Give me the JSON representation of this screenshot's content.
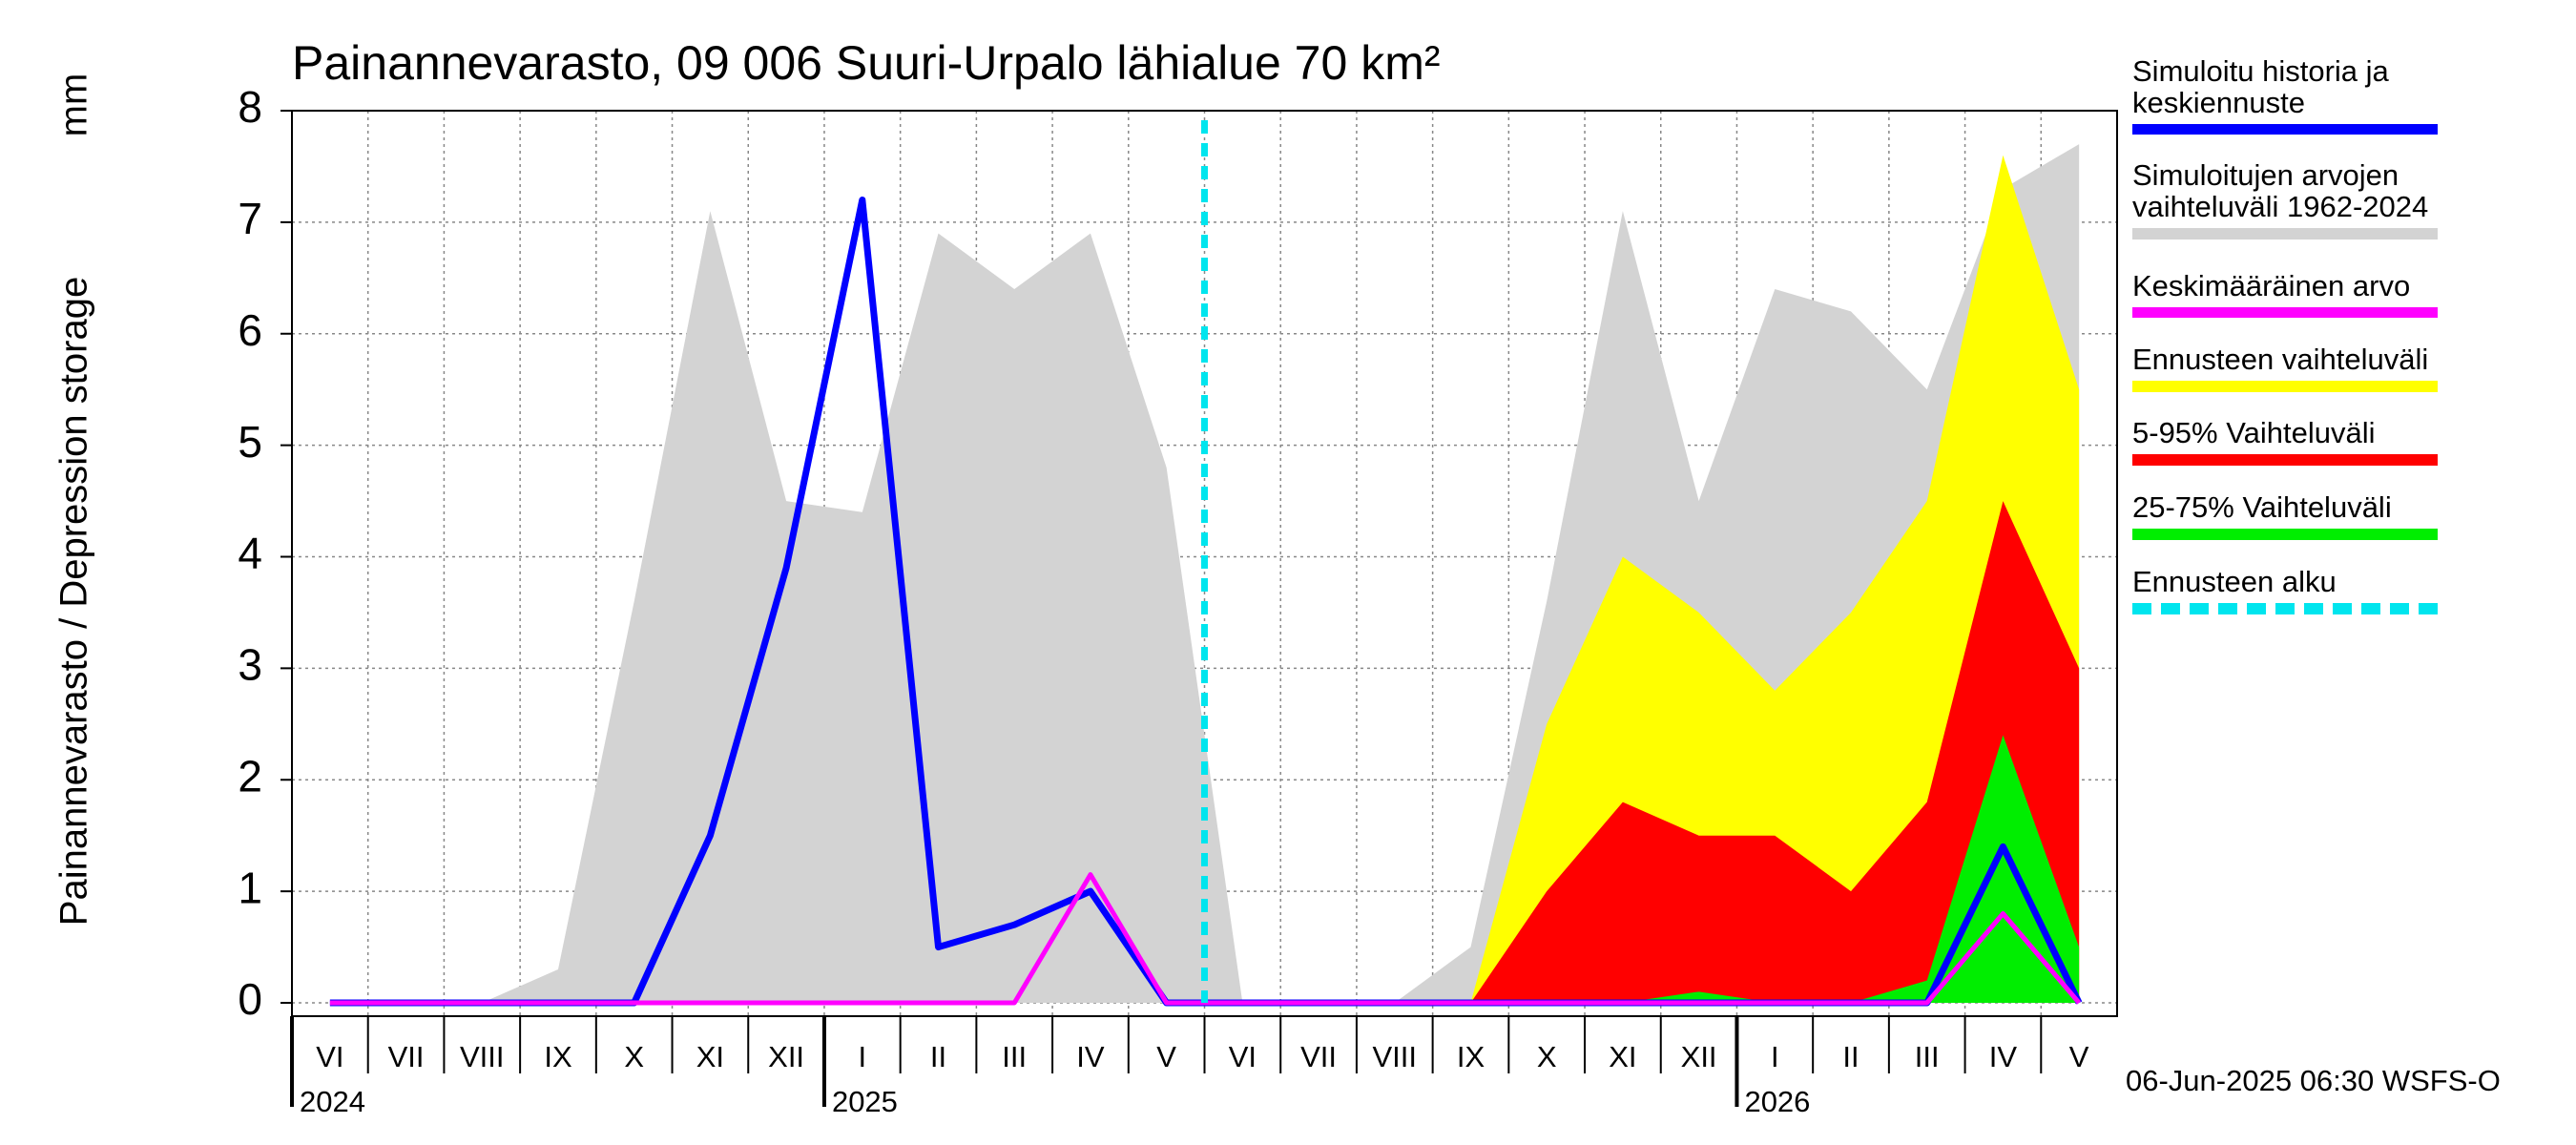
{
  "chart_data": {
    "type": "hydrograph",
    "title": "Painannevarasto, 09 006 Suuri-Urpalo lähialue 70 km²",
    "ylabel": "Painannevarasto / Depression storage",
    "yunit": "mm",
    "footer": "06-Jun-2025 06:30 WSFS-O",
    "categories": [
      "VI",
      "VII",
      "VIII",
      "IX",
      "X",
      "XI",
      "XII",
      "I",
      "II",
      "III",
      "IV",
      "V",
      "VI",
      "VII",
      "VIII",
      "IX",
      "X",
      "XI",
      "XII",
      "I",
      "II",
      "III",
      "IV",
      "V"
    ],
    "year_labels": [
      "2024",
      "2025",
      "2026"
    ],
    "ylim": [
      0,
      8
    ],
    "yticks": [
      0,
      1,
      2,
      3,
      4,
      5,
      6,
      7,
      8
    ],
    "grid": true,
    "series": [
      {
        "name": "Simuloitu historia ja\nkeskiennuste",
        "color": "#0000ff",
        "style": "line",
        "values": [
          0,
          0,
          0,
          0,
          0,
          1.5,
          3.9,
          7.2,
          0.5,
          0.7,
          1.0,
          0,
          0,
          0,
          0,
          0,
          0,
          0,
          0,
          0,
          0,
          0,
          1.4,
          0
        ]
      },
      {
        "name": "Simuloitujen arvojen\nvaihteluväli 1962-2024",
        "color": "#d3d3d3",
        "style": "area",
        "values": [
          0,
          0,
          0,
          0.3,
          3.6,
          7.1,
          4.5,
          4.4,
          6.9,
          6.4,
          6.9,
          4.8,
          0,
          0,
          0,
          0.5,
          3.6,
          7.1,
          4.5,
          6.4,
          6.2,
          5.5,
          7.3,
          7.7
        ]
      },
      {
        "name": "Keskimääräinen arvo",
        "color": "#ff00ff",
        "style": "line",
        "values": [
          0,
          0,
          0,
          0,
          0,
          0,
          0,
          0,
          0,
          0,
          1.15,
          0,
          0,
          0,
          0,
          0,
          0,
          0,
          0,
          0,
          0,
          0,
          0.8,
          0
        ]
      },
      {
        "name": "Ennusteen vaihteluväli",
        "color": "#ffff00",
        "style": "area",
        "values": [
          null,
          null,
          null,
          null,
          null,
          null,
          null,
          null,
          null,
          null,
          null,
          null,
          0,
          0,
          0,
          0,
          2.5,
          4.0,
          3.5,
          2.8,
          3.5,
          4.5,
          7.6,
          5.5
        ]
      },
      {
        "name": "5-95% Vaihteluväli",
        "color": "#ff0000",
        "style": "area",
        "values": [
          null,
          null,
          null,
          null,
          null,
          null,
          null,
          null,
          null,
          null,
          null,
          null,
          0,
          0,
          0,
          0,
          1.0,
          1.8,
          1.5,
          1.5,
          1.0,
          1.8,
          4.5,
          3.0
        ]
      },
      {
        "name": "25-75% Vaihteluväli",
        "color": "#00ee00",
        "style": "area",
        "values": [
          null,
          null,
          null,
          null,
          null,
          null,
          null,
          null,
          null,
          null,
          null,
          null,
          0,
          0,
          0,
          0,
          0,
          0,
          0.1,
          0,
          0,
          0.2,
          2.4,
          0.5
        ]
      },
      {
        "name": "Ennusteen alku",
        "color": "#00e5ee",
        "style": "vline"
      }
    ]
  }
}
